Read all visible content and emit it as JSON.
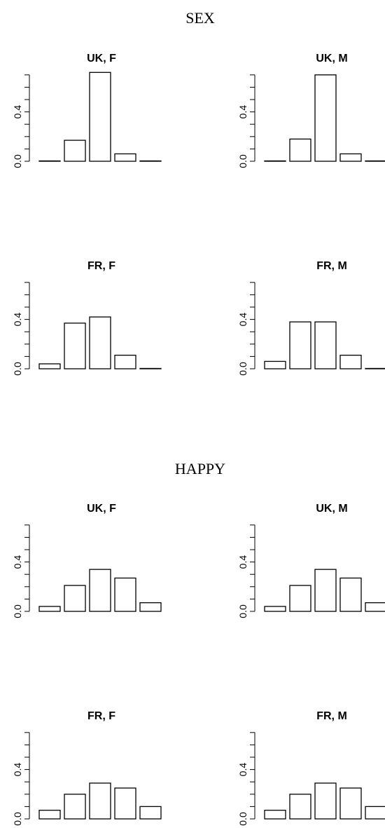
{
  "sections": [
    {
      "title": "SEX",
      "panels": [
        {
          "title": "UK, F",
          "values": [
            0.0,
            0.17,
            0.72,
            0.06,
            0.0
          ]
        },
        {
          "title": "UK, M",
          "values": [
            0.0,
            0.18,
            0.7,
            0.06,
            0.0
          ]
        },
        {
          "title": "FR, F",
          "values": [
            0.04,
            0.37,
            0.42,
            0.11,
            0.0
          ]
        },
        {
          "title": "FR, M",
          "values": [
            0.06,
            0.38,
            0.38,
            0.11,
            0.0
          ]
        }
      ]
    },
    {
      "title": "HAPPY",
      "panels": [
        {
          "title": "UK, F",
          "values": [
            0.04,
            0.21,
            0.34,
            0.27,
            0.07
          ]
        },
        {
          "title": "UK, M",
          "values": [
            0.04,
            0.21,
            0.34,
            0.27,
            0.07
          ]
        },
        {
          "title": "FR, F",
          "values": [
            0.07,
            0.2,
            0.29,
            0.25,
            0.1
          ]
        },
        {
          "title": "FR, M",
          "values": [
            0.07,
            0.2,
            0.29,
            0.25,
            0.1
          ]
        }
      ]
    }
  ],
  "axis": {
    "ylim": [
      0,
      0.7
    ],
    "tick_labels": [
      "0.0",
      "0.4"
    ]
  },
  "chart_data": [
    {
      "type": "bar",
      "title": "UK, F",
      "section": "SEX",
      "categories": [
        "",
        "",
        "",
        "",
        ""
      ],
      "values": [
        0.0,
        0.17,
        0.72,
        0.06,
        0.0
      ]
    },
    {
      "type": "bar",
      "title": "UK, M",
      "section": "SEX",
      "categories": [
        "",
        "",
        "",
        "",
        ""
      ],
      "values": [
        0.0,
        0.18,
        0.7,
        0.06,
        0.0
      ]
    },
    {
      "type": "bar",
      "title": "FR, F",
      "section": "SEX",
      "categories": [
        "",
        "",
        "",
        "",
        ""
      ],
      "values": [
        0.04,
        0.37,
        0.42,
        0.11,
        0.0
      ]
    },
    {
      "type": "bar",
      "title": "FR, M",
      "section": "SEX",
      "categories": [
        "",
        "",
        "",
        "",
        ""
      ],
      "values": [
        0.06,
        0.38,
        0.38,
        0.11,
        0.0
      ]
    },
    {
      "type": "bar",
      "title": "UK, F",
      "section": "HAPPY",
      "categories": [
        "",
        "",
        "",
        "",
        ""
      ],
      "values": [
        0.04,
        0.21,
        0.34,
        0.27,
        0.07
      ]
    },
    {
      "type": "bar",
      "title": "UK, M",
      "section": "HAPPY",
      "categories": [
        "",
        "",
        "",
        "",
        ""
      ],
      "values": [
        0.04,
        0.21,
        0.34,
        0.27,
        0.07
      ]
    },
    {
      "type": "bar",
      "title": "FR, F",
      "section": "HAPPY",
      "categories": [
        "",
        "",
        "",
        "",
        ""
      ],
      "values": [
        0.07,
        0.2,
        0.29,
        0.25,
        0.1
      ]
    },
    {
      "type": "bar",
      "title": "FR, M",
      "section": "HAPPY",
      "categories": [
        "",
        "",
        "",
        "",
        ""
      ],
      "values": [
        0.07,
        0.2,
        0.29,
        0.25,
        0.1
      ]
    }
  ]
}
